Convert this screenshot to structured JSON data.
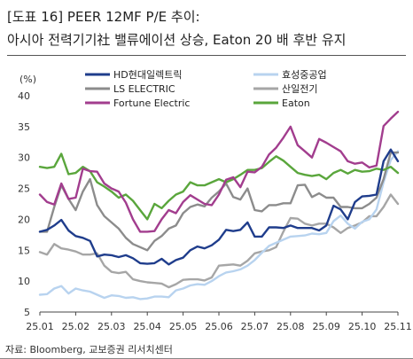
{
  "header": {
    "title_line1": "[도표 16] PEER 12MF P/E 추이:",
    "title_line2": "아시아 전력기기社 밸류에이션 상승, Eaton 20 배 후반 유지"
  },
  "footer": {
    "source": "자료: Bloomberg, 교보증권 리서치센터"
  },
  "chart_data": {
    "type": "line",
    "ylabel": "(%)",
    "ylim": [
      5,
      40
    ],
    "yticks": [
      5,
      10,
      15,
      20,
      25,
      30,
      35,
      40
    ],
    "xlim": [
      0,
      10
    ],
    "xticks": [
      {
        "pos": 0,
        "label": "25.01"
      },
      {
        "pos": 1,
        "label": "25.02"
      },
      {
        "pos": 2,
        "label": "25.03"
      },
      {
        "pos": 3,
        "label": "25.04"
      },
      {
        "pos": 4,
        "label": "25.05"
      },
      {
        "pos": 5,
        "label": "25.06"
      },
      {
        "pos": 6,
        "label": "25.07"
      },
      {
        "pos": 7,
        "label": "25.08"
      },
      {
        "pos": 8,
        "label": "25.09"
      },
      {
        "pos": 9,
        "label": "25.10"
      },
      {
        "pos": 10,
        "label": "25.11"
      }
    ],
    "grid": false,
    "legend_position": "top",
    "series": [
      {
        "name": "HD현대일렉트릭",
        "color": "#1f3d8c",
        "points": [
          [
            0,
            18
          ],
          [
            0.2,
            18.3
          ],
          [
            0.4,
            19
          ],
          [
            0.6,
            19.9
          ],
          [
            0.8,
            18.2
          ],
          [
            1,
            17.3
          ],
          [
            1.2,
            17
          ],
          [
            1.4,
            16.5
          ],
          [
            1.6,
            14
          ],
          [
            1.8,
            14.3
          ],
          [
            2,
            14.2
          ],
          [
            2.2,
            13.9
          ],
          [
            2.4,
            14.2
          ],
          [
            2.6,
            13.7
          ],
          [
            2.8,
            12.9
          ],
          [
            3,
            12.8
          ],
          [
            3.2,
            12.9
          ],
          [
            3.4,
            13.6
          ],
          [
            3.6,
            12.7
          ],
          [
            3.8,
            13.4
          ],
          [
            4,
            13.8
          ],
          [
            4.2,
            15
          ],
          [
            4.4,
            15.6
          ],
          [
            4.6,
            15.3
          ],
          [
            4.8,
            15.8
          ],
          [
            5,
            16.7
          ],
          [
            5.2,
            18.3
          ],
          [
            5.4,
            18.1
          ],
          [
            5.6,
            18.3
          ],
          [
            5.8,
            19.5
          ],
          [
            6,
            17.2
          ],
          [
            6.2,
            17.2
          ],
          [
            6.4,
            18.7
          ],
          [
            6.6,
            18.7
          ],
          [
            6.8,
            18.6
          ],
          [
            7,
            19
          ],
          [
            7.2,
            18.6
          ],
          [
            7.4,
            18.6
          ],
          [
            7.6,
            18.6
          ],
          [
            7.8,
            18.2
          ],
          [
            8,
            19
          ],
          [
            8.2,
            22.2
          ],
          [
            8.4,
            21.6
          ],
          [
            8.6,
            20
          ],
          [
            8.8,
            22.8
          ],
          [
            9,
            23.7
          ],
          [
            9.2,
            23.8
          ],
          [
            9.4,
            24
          ],
          [
            9.6,
            29.4
          ],
          [
            9.8,
            31.3
          ],
          [
            10,
            29.4
          ]
        ]
      },
      {
        "name": "효성중공업",
        "color": "#b8d3ef",
        "points": [
          [
            0,
            7.8
          ],
          [
            0.2,
            7.9
          ],
          [
            0.4,
            8.8
          ],
          [
            0.6,
            9.2
          ],
          [
            0.8,
            8
          ],
          [
            1,
            8.8
          ],
          [
            1.2,
            8.5
          ],
          [
            1.4,
            8.3
          ],
          [
            1.6,
            7.8
          ],
          [
            1.8,
            7.3
          ],
          [
            2,
            7.7
          ],
          [
            2.2,
            7.6
          ],
          [
            2.4,
            7.3
          ],
          [
            2.6,
            7.4
          ],
          [
            2.8,
            7.1
          ],
          [
            3,
            7.2
          ],
          [
            3.2,
            7.5
          ],
          [
            3.4,
            7.5
          ],
          [
            3.6,
            7.4
          ],
          [
            3.8,
            8.5
          ],
          [
            4,
            8.8
          ],
          [
            4.2,
            9.3
          ],
          [
            4.4,
            9.5
          ],
          [
            4.6,
            9.4
          ],
          [
            4.8,
            10
          ],
          [
            5,
            10.8
          ],
          [
            5.2,
            11.4
          ],
          [
            5.4,
            11.6
          ],
          [
            5.6,
            11.9
          ],
          [
            5.8,
            12.5
          ],
          [
            6,
            13.4
          ],
          [
            6.2,
            14.6
          ],
          [
            6.4,
            15.7
          ],
          [
            6.6,
            16.2
          ],
          [
            6.8,
            16.7
          ],
          [
            7,
            17.2
          ],
          [
            7.2,
            17.3
          ],
          [
            7.4,
            17.4
          ],
          [
            7.6,
            17.7
          ],
          [
            7.8,
            17.6
          ],
          [
            8,
            17.8
          ],
          [
            8.2,
            19.7
          ],
          [
            8.4,
            20.6
          ],
          [
            8.6,
            19.3
          ],
          [
            8.8,
            18.5
          ],
          [
            9,
            19.6
          ],
          [
            9.2,
            20
          ],
          [
            9.4,
            21.6
          ],
          [
            9.6,
            26
          ],
          [
            9.8,
            29.6
          ],
          [
            10,
            31
          ]
        ]
      },
      {
        "name": "LS ELECTRIC",
        "color": "#8c8c8c",
        "points": [
          [
            0,
            18
          ],
          [
            0.2,
            18
          ],
          [
            0.4,
            22
          ],
          [
            0.6,
            25.5
          ],
          [
            0.8,
            23.3
          ],
          [
            1,
            21.5
          ],
          [
            1.2,
            24.5
          ],
          [
            1.4,
            26.5
          ],
          [
            1.6,
            22.3
          ],
          [
            1.8,
            20.5
          ],
          [
            2,
            19.5
          ],
          [
            2.2,
            18.5
          ],
          [
            2.4,
            17
          ],
          [
            2.6,
            16
          ],
          [
            2.8,
            15.5
          ],
          [
            3,
            15
          ],
          [
            3.2,
            16.5
          ],
          [
            3.4,
            17.3
          ],
          [
            3.6,
            18.5
          ],
          [
            3.8,
            19
          ],
          [
            4,
            21
          ],
          [
            4.2,
            22
          ],
          [
            4.4,
            22.4
          ],
          [
            4.6,
            22.1
          ],
          [
            4.8,
            23.5
          ],
          [
            5,
            24.5
          ],
          [
            5.2,
            25.8
          ],
          [
            5.4,
            23.6
          ],
          [
            5.6,
            23.2
          ],
          [
            5.8,
            25
          ],
          [
            6,
            21.5
          ],
          [
            6.2,
            21.3
          ],
          [
            6.4,
            22.3
          ],
          [
            6.6,
            22.3
          ],
          [
            6.8,
            22.6
          ],
          [
            7,
            22.6
          ],
          [
            7.2,
            25.5
          ],
          [
            7.4,
            25.6
          ],
          [
            7.6,
            23.6
          ],
          [
            7.8,
            24.2
          ],
          [
            8,
            23.5
          ],
          [
            8.2,
            23.5
          ],
          [
            8.4,
            22
          ],
          [
            8.6,
            22
          ],
          [
            8.8,
            21.8
          ],
          [
            9,
            21.8
          ],
          [
            9.2,
            22.5
          ],
          [
            9.4,
            23.5
          ],
          [
            9.6,
            26.5
          ],
          [
            9.8,
            30.8
          ],
          [
            10,
            30.8
          ]
        ]
      },
      {
        "name": "산일전기",
        "color": "#a6a6a6",
        "points": [
          [
            0,
            14.7
          ],
          [
            0.2,
            14.3
          ],
          [
            0.4,
            16
          ],
          [
            0.6,
            15.3
          ],
          [
            0.8,
            15.1
          ],
          [
            1,
            14.8
          ],
          [
            1.2,
            14.3
          ],
          [
            1.4,
            14.3
          ],
          [
            1.6,
            14.5
          ],
          [
            1.8,
            12.5
          ],
          [
            2,
            11.5
          ],
          [
            2.2,
            11.3
          ],
          [
            2.4,
            11.5
          ],
          [
            2.6,
            10.3
          ],
          [
            2.8,
            10
          ],
          [
            3,
            9.8
          ],
          [
            3.2,
            9.7
          ],
          [
            3.4,
            9.6
          ],
          [
            3.6,
            9
          ],
          [
            3.8,
            9.5
          ],
          [
            4,
            10.2
          ],
          [
            4.2,
            10.3
          ],
          [
            4.4,
            10.3
          ],
          [
            4.6,
            10.1
          ],
          [
            4.8,
            10.6
          ],
          [
            5,
            12.5
          ],
          [
            5.2,
            12.6
          ],
          [
            5.4,
            12.7
          ],
          [
            5.6,
            12.5
          ],
          [
            5.8,
            13.3
          ],
          [
            6,
            14.5
          ],
          [
            6.2,
            14.8
          ],
          [
            6.4,
            15
          ],
          [
            6.6,
            15.5
          ],
          [
            6.8,
            18
          ],
          [
            7,
            20.2
          ],
          [
            7.2,
            20.1
          ],
          [
            7.4,
            19.3
          ],
          [
            7.6,
            19
          ],
          [
            7.8,
            19.3
          ],
          [
            8,
            19.3
          ],
          [
            8.2,
            18.7
          ],
          [
            8.4,
            17.8
          ],
          [
            8.6,
            18.6
          ],
          [
            8.8,
            19
          ],
          [
            9,
            19.5
          ],
          [
            9.2,
            20.5
          ],
          [
            9.4,
            20.5
          ],
          [
            9.6,
            22
          ],
          [
            9.8,
            24
          ],
          [
            10,
            22.5
          ]
        ]
      },
      {
        "name": "Fortune Electric",
        "color": "#a23d8e",
        "points": [
          [
            0,
            24
          ],
          [
            0.2,
            22.8
          ],
          [
            0.4,
            22.4
          ],
          [
            0.6,
            25.8
          ],
          [
            0.8,
            23.3
          ],
          [
            1,
            23.5
          ],
          [
            1.2,
            28.2
          ],
          [
            1.4,
            27.8
          ],
          [
            1.6,
            27.7
          ],
          [
            1.8,
            25.8
          ],
          [
            2,
            25
          ],
          [
            2.2,
            24.5
          ],
          [
            2.4,
            22.7
          ],
          [
            2.6,
            20
          ],
          [
            2.8,
            18
          ],
          [
            3,
            18
          ],
          [
            3.2,
            18.1
          ],
          [
            3.4,
            20
          ],
          [
            3.6,
            21.5
          ],
          [
            3.8,
            21
          ],
          [
            4,
            22.8
          ],
          [
            4.2,
            23.9
          ],
          [
            4.4,
            23.2
          ],
          [
            4.6,
            22.5
          ],
          [
            4.8,
            22.3
          ],
          [
            5,
            24
          ],
          [
            5.2,
            26.4
          ],
          [
            5.4,
            26.8
          ],
          [
            5.6,
            25.2
          ],
          [
            5.8,
            27.7
          ],
          [
            6,
            27.6
          ],
          [
            6.2,
            28.5
          ],
          [
            6.4,
            30.5
          ],
          [
            6.6,
            31.6
          ],
          [
            6.8,
            33.2
          ],
          [
            7,
            35
          ],
          [
            7.2,
            32
          ],
          [
            7.4,
            31
          ],
          [
            7.6,
            30
          ],
          [
            7.8,
            33
          ],
          [
            8,
            32.4
          ],
          [
            8.2,
            31.7
          ],
          [
            8.4,
            31
          ],
          [
            8.6,
            29.4
          ],
          [
            8.8,
            29
          ],
          [
            9,
            29.2
          ],
          [
            9.2,
            28.4
          ],
          [
            9.4,
            28.7
          ],
          [
            9.6,
            35.1
          ],
          [
            9.8,
            36.3
          ],
          [
            10,
            37.4
          ]
        ]
      },
      {
        "name": "Eaton",
        "color": "#5aa63c",
        "points": [
          [
            0,
            28.5
          ],
          [
            0.2,
            28.3
          ],
          [
            0.4,
            28.5
          ],
          [
            0.6,
            30.6
          ],
          [
            0.8,
            27.3
          ],
          [
            1,
            27.5
          ],
          [
            1.2,
            28.5
          ],
          [
            1.4,
            27.8
          ],
          [
            1.6,
            26
          ],
          [
            1.8,
            25.3
          ],
          [
            2,
            24.5
          ],
          [
            2.2,
            23.5
          ],
          [
            2.4,
            24
          ],
          [
            2.6,
            23
          ],
          [
            2.8,
            21.5
          ],
          [
            3,
            20
          ],
          [
            3.2,
            22.5
          ],
          [
            3.4,
            21.8
          ],
          [
            3.6,
            23
          ],
          [
            3.8,
            24
          ],
          [
            4,
            24.5
          ],
          [
            4.2,
            26
          ],
          [
            4.4,
            25.5
          ],
          [
            4.6,
            25.5
          ],
          [
            4.8,
            26
          ],
          [
            5,
            26.5
          ],
          [
            5.2,
            26
          ],
          [
            5.4,
            26.5
          ],
          [
            5.6,
            27.2
          ],
          [
            5.8,
            28
          ],
          [
            6,
            28
          ],
          [
            6.2,
            28.3
          ],
          [
            6.4,
            29.3
          ],
          [
            6.6,
            30.2
          ],
          [
            6.8,
            29.5
          ],
          [
            7,
            28.5
          ],
          [
            7.2,
            27.5
          ],
          [
            7.4,
            27.2
          ],
          [
            7.6,
            27
          ],
          [
            7.8,
            27.2
          ],
          [
            8,
            26.5
          ],
          [
            8.2,
            27.5
          ],
          [
            8.4,
            28
          ],
          [
            8.6,
            27.4
          ],
          [
            8.8,
            28
          ],
          [
            9,
            27.7
          ],
          [
            9.2,
            27.8
          ],
          [
            9.4,
            28.2
          ],
          [
            9.6,
            28
          ],
          [
            9.8,
            28.5
          ],
          [
            10,
            27.5
          ]
        ]
      }
    ]
  }
}
